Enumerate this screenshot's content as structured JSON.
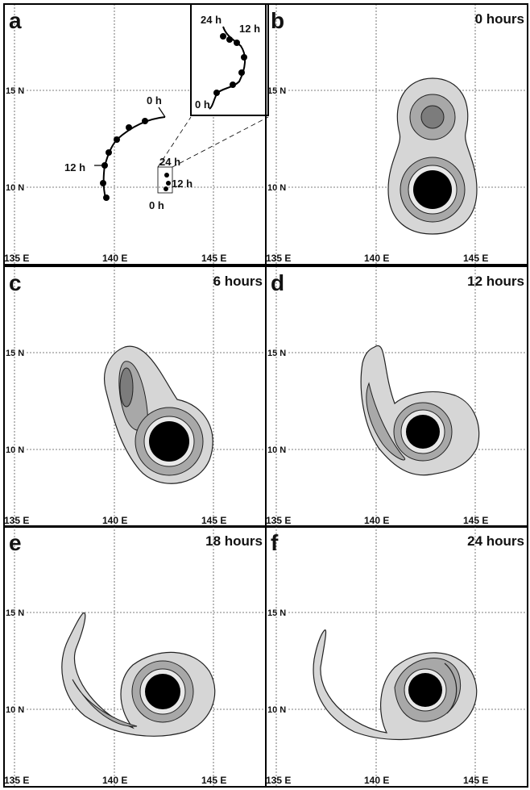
{
  "axis": {
    "lon_labels": [
      "135 E",
      "140 E",
      "145 E"
    ],
    "lat_labels": [
      "15 N",
      "10 N"
    ]
  },
  "panels": [
    {
      "letter": "a",
      "track_labels": [
        "0 h",
        "12 h",
        "24 h",
        "12 h",
        "0 h"
      ],
      "inset_labels": [
        "24 h",
        "12 h",
        "0 h"
      ]
    },
    {
      "letter": "b",
      "time": "0 hours"
    },
    {
      "letter": "c",
      "time": "6 hours"
    },
    {
      "letter": "d",
      "time": "12 hours"
    },
    {
      "letter": "e",
      "time": "18 hours"
    },
    {
      "letter": "f",
      "time": "24 hours"
    }
  ]
}
